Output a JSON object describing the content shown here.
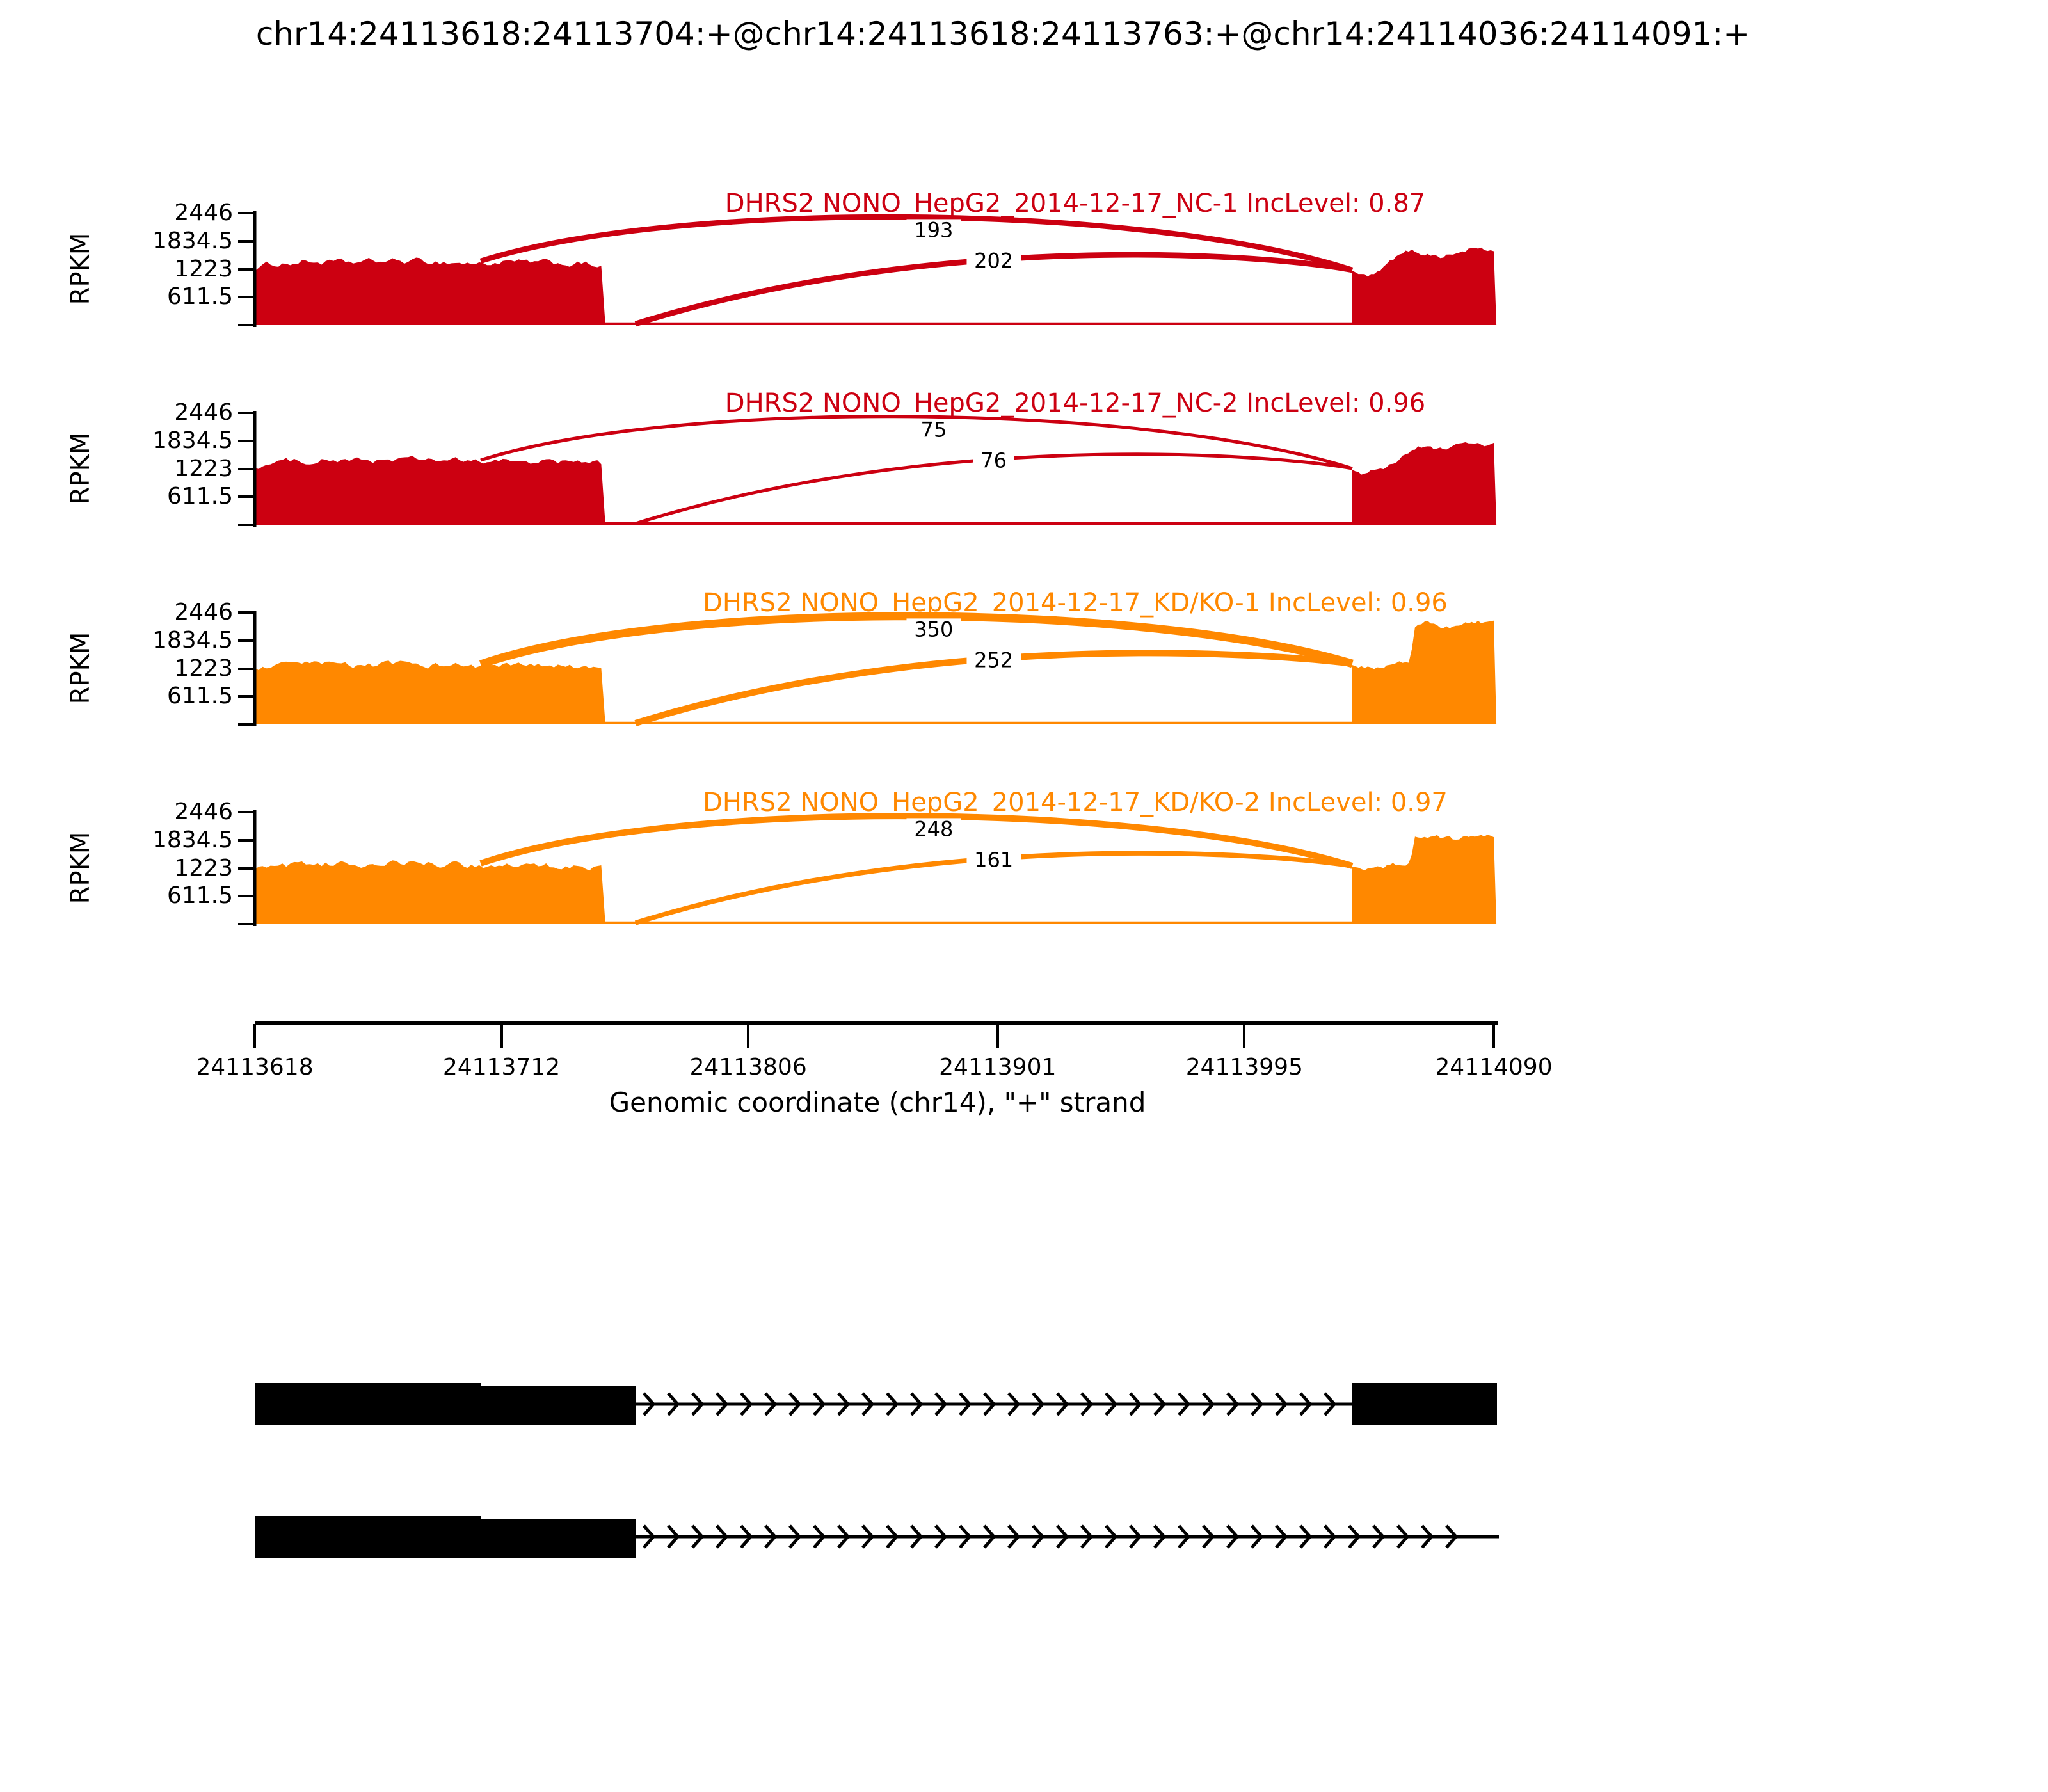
{
  "title": "chr14:24113618:24113704:+@chr14:24113618:24113763:+@chr14:24114036:24114091:+",
  "colors": {
    "group1": "#CC0011",
    "group2": "#FF8800",
    "axis": "#000000",
    "junction_label": "#000000"
  },
  "y_axis": {
    "label": "RPKM",
    "ticks": [
      "2446",
      "1834.5",
      "1223",
      "611.5"
    ],
    "max": 2446
  },
  "x_axis": {
    "label": "Genomic coordinate (chr14), \"+\" strand",
    "ticks": [
      24113618,
      24113712,
      24113806,
      24113901,
      24113995,
      24114090
    ],
    "min": 24113618,
    "max": 24114090
  },
  "chart_data": {
    "type": "sashimi",
    "region": {
      "chrom": "chr14",
      "start": 24113618,
      "end": 24114091,
      "strand": "+"
    },
    "event": {
      "exon_short": [
        24113618,
        24113704
      ],
      "exon_long": [
        24113618,
        24113763
      ],
      "exon_downstream": [
        24114036,
        24114091
      ]
    },
    "tracks": [
      {
        "label": "DHRS2 NONO_HepG2_2014-12-17_NC-1 IncLevel: 0.87",
        "sample": "NC-1",
        "inc_level": 0.87,
        "color": "#CC0011",
        "junctions": [
          {
            "from": 24113704,
            "to": 24114036,
            "count": 193,
            "arc": "upper"
          },
          {
            "from": 24113763,
            "to": 24114036,
            "count": 202,
            "arc": "lower"
          }
        ],
        "intron_rpkm": 60,
        "coverage_left": [
          [
            0,
            1230
          ],
          [
            6,
            1330
          ],
          [
            20,
            1385
          ],
          [
            35,
            1360
          ],
          [
            50,
            1400
          ],
          [
            68,
            1390
          ],
          [
            86,
            1335
          ],
          [
            95,
            1375
          ],
          [
            110,
            1360
          ],
          [
            125,
            1330
          ],
          [
            133,
            1305
          ]
        ],
        "coverage_right": [
          [
            0,
            1150
          ],
          [
            3,
            1100
          ],
          [
            6,
            1060
          ],
          [
            10,
            1130
          ],
          [
            16,
            1450
          ],
          [
            22,
            1630
          ],
          [
            28,
            1560
          ],
          [
            34,
            1500
          ],
          [
            40,
            1560
          ],
          [
            46,
            1690
          ],
          [
            51,
            1620
          ],
          [
            55,
            1660
          ]
        ]
      },
      {
        "label": "DHRS2 NONO_HepG2_2014-12-17_NC-2 IncLevel: 0.96",
        "sample": "NC-2",
        "inc_level": 0.96,
        "color": "#CC0011",
        "junctions": [
          {
            "from": 24113704,
            "to": 24114036,
            "count": 75,
            "arc": "upper"
          },
          {
            "from": 24113763,
            "to": 24114036,
            "count": 76,
            "arc": "lower"
          }
        ],
        "intron_rpkm": 60,
        "coverage_left": [
          [
            0,
            1260
          ],
          [
            8,
            1360
          ],
          [
            22,
            1420
          ],
          [
            40,
            1395
          ],
          [
            58,
            1430
          ],
          [
            72,
            1410
          ],
          [
            86,
            1360
          ],
          [
            96,
            1400
          ],
          [
            112,
            1385
          ],
          [
            126,
            1350
          ],
          [
            133,
            1330
          ]
        ],
        "coverage_right": [
          [
            0,
            1180
          ],
          [
            4,
            1130
          ],
          [
            9,
            1180
          ],
          [
            14,
            1300
          ],
          [
            20,
            1530
          ],
          [
            26,
            1700
          ],
          [
            32,
            1640
          ],
          [
            38,
            1700
          ],
          [
            44,
            1780
          ],
          [
            50,
            1730
          ],
          [
            55,
            1760
          ]
        ]
      },
      {
        "label": "DHRS2 NONO_HepG2_2014-12-17_KD/KO-1 IncLevel: 0.96",
        "sample": "KD/KO-1",
        "inc_level": 0.96,
        "color": "#FF8800",
        "junctions": [
          {
            "from": 24113704,
            "to": 24114036,
            "count": 350,
            "arc": "upper"
          },
          {
            "from": 24113763,
            "to": 24114036,
            "count": 252,
            "arc": "lower"
          }
        ],
        "intron_rpkm": 60,
        "coverage_left": [
          [
            0,
            1200
          ],
          [
            8,
            1270
          ],
          [
            22,
            1310
          ],
          [
            40,
            1290
          ],
          [
            58,
            1320
          ],
          [
            72,
            1305
          ],
          [
            86,
            1260
          ],
          [
            96,
            1290
          ],
          [
            112,
            1265
          ],
          [
            126,
            1235
          ],
          [
            133,
            1215
          ]
        ],
        "coverage_right": [
          [
            0,
            1270
          ],
          [
            5,
            1220
          ],
          [
            10,
            1270
          ],
          [
            16,
            1330
          ],
          [
            22,
            1340
          ],
          [
            24,
            2130
          ],
          [
            28,
            2230
          ],
          [
            33,
            2150
          ],
          [
            38,
            2110
          ],
          [
            43,
            2220
          ],
          [
            48,
            2250
          ],
          [
            52,
            2230
          ],
          [
            55,
            2240
          ]
        ]
      },
      {
        "label": "DHRS2 NONO_HepG2_2014-12-17_KD/KO-2 IncLevel: 0.97",
        "sample": "KD/KO-2",
        "inc_level": 0.97,
        "color": "#FF8800",
        "junctions": [
          {
            "from": 24113704,
            "to": 24114036,
            "count": 248,
            "arc": "upper"
          },
          {
            "from": 24113763,
            "to": 24114036,
            "count": 161,
            "arc": "lower"
          }
        ],
        "intron_rpkm": 60,
        "coverage_left": [
          [
            0,
            1210
          ],
          [
            8,
            1280
          ],
          [
            25,
            1320
          ],
          [
            42,
            1300
          ],
          [
            60,
            1330
          ],
          [
            74,
            1310
          ],
          [
            86,
            1265
          ],
          [
            96,
            1295
          ],
          [
            112,
            1270
          ],
          [
            126,
            1240
          ],
          [
            133,
            1220
          ]
        ],
        "coverage_right": [
          [
            0,
            1220
          ],
          [
            5,
            1170
          ],
          [
            10,
            1230
          ],
          [
            16,
            1290
          ],
          [
            22,
            1300
          ],
          [
            24,
            1880
          ],
          [
            28,
            1975
          ],
          [
            33,
            1900
          ],
          [
            38,
            1850
          ],
          [
            44,
            1950
          ],
          [
            50,
            1930
          ],
          [
            55,
            1910
          ]
        ]
      }
    ],
    "isoforms": [
      {
        "exon_left": [
          24113618,
          24113763
        ],
        "seam": 24113704,
        "exon_right": [
          24114036,
          24114091
        ],
        "line_end": 24114036
      },
      {
        "exon_left": [
          24113618,
          24113763
        ],
        "seam": 24113704,
        "exon_right": null,
        "line_end": 24114092
      }
    ]
  }
}
